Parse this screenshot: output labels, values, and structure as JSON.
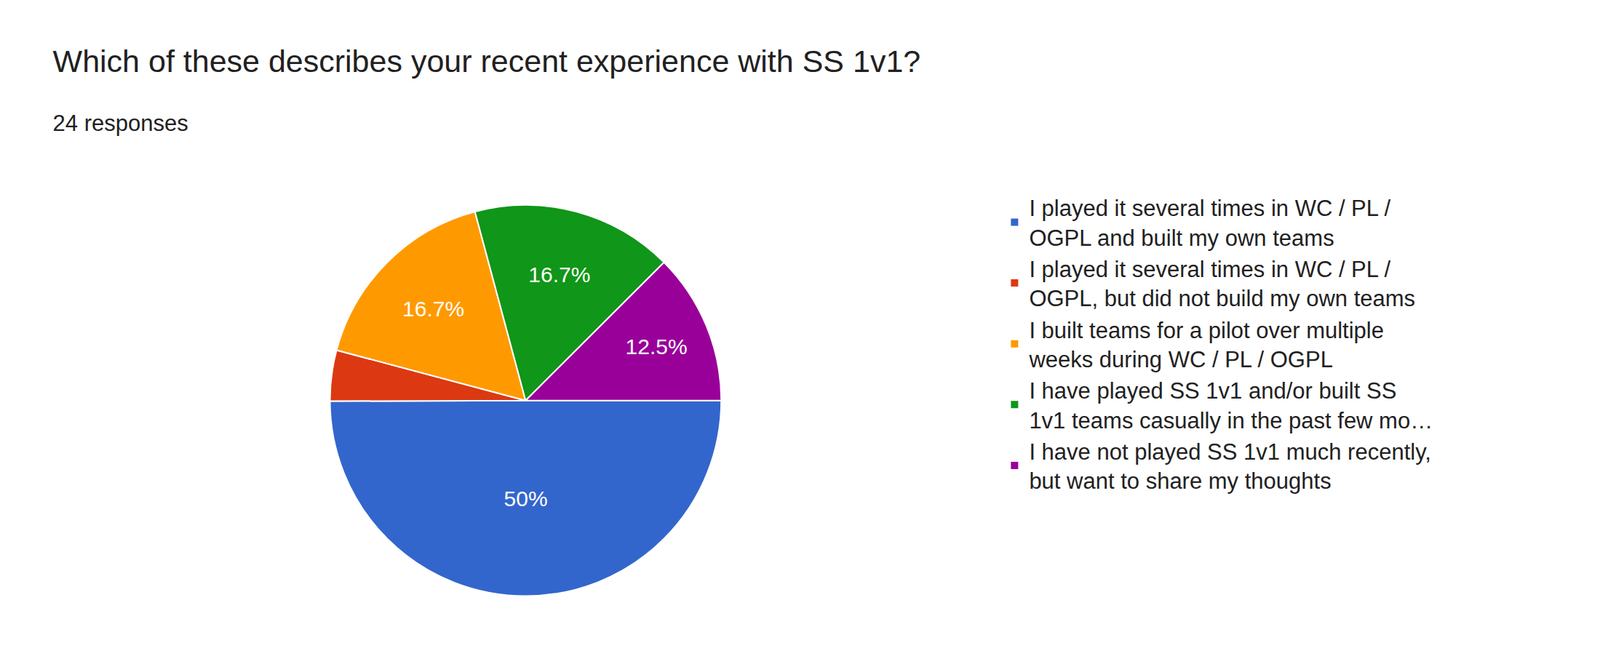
{
  "chart_data": {
    "type": "pie",
    "title": "Which of these describes your recent experience with SS 1v1?",
    "subtitle": "24 responses",
    "categories": [
      "I played it several times in WC / PL / OGPL and built my own teams",
      "I played it several times in WC / PL / OGPL, but did not build my own teams",
      "I built teams for a pilot over multiple weeks during WC / PL / OGPL",
      "I have played SS 1v1 and/or built SS 1v1 teams casually in the past few mo…",
      "I have not played SS 1v1 much recently, but want to share my thoughts"
    ],
    "values": [
      50,
      4.2,
      16.7,
      16.7,
      12.5
    ],
    "value_labels": [
      "50%",
      null,
      "16.7%",
      "16.7%",
      "12.5%"
    ],
    "colors": [
      "#3366cc",
      "#dc3912",
      "#ff9900",
      "#109618",
      "#990099"
    ],
    "data_labels": true,
    "legend": "right"
  }
}
